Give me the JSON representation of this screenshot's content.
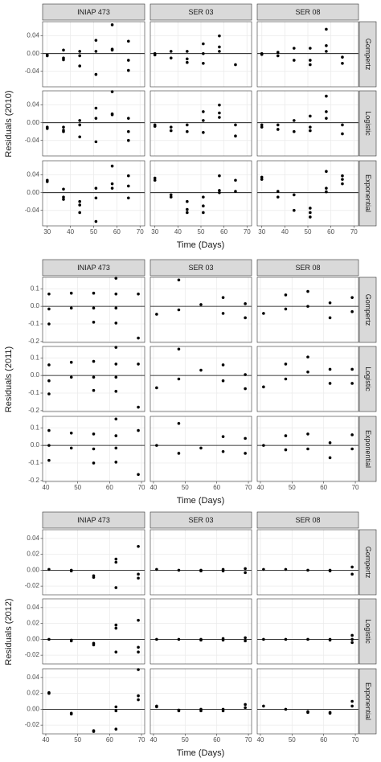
{
  "chart_data": [
    {
      "type": "scatter",
      "ylabel": "Residuals (2010)",
      "xlabel": "Time (Days)",
      "color": "#000000",
      "grid": true,
      "hline": 0,
      "xlim": [
        28,
        72
      ],
      "xticks": [
        30,
        40,
        50,
        60,
        70
      ],
      "ylim": [
        -0.075,
        0.072
      ],
      "yticks": [
        -0.04,
        {
          "value": 0,
          "label": "0.00"
        },
        0.04
      ],
      "columns": [
        "INIAP 473",
        "SER 03",
        "SER 08"
      ],
      "rows": [
        "Gompertz",
        "Logistic",
        "Exponential"
      ],
      "panels": [
        [
          {
            "x": [
              30,
              30,
              37,
              37,
              37,
              44,
              44,
              44,
              51,
              51,
              51,
              58,
              58,
              58,
              65,
              65,
              65
            ],
            "values": [
              -0.003,
              -0.005,
              0.008,
              -0.01,
              -0.014,
              0.005,
              -0.005,
              -0.028,
              0.03,
              0.005,
              -0.047,
              0.065,
              0.01,
              0.008,
              0.028,
              -0.015,
              -0.038
            ]
          },
          {
            "x": [
              30,
              30,
              37,
              37,
              44,
              44,
              44,
              51,
              51,
              51,
              58,
              58,
              58,
              65
            ],
            "values": [
              0,
              -0.003,
              0.005,
              -0.01,
              -0.012,
              -0.02,
              0.005,
              0.022,
              0,
              -0.022,
              0.04,
              0.015,
              0.005,
              -0.025
            ]
          },
          {
            "x": [
              30,
              30,
              37,
              37,
              44,
              44,
              51,
              51,
              51,
              58,
              58,
              58,
              65,
              65
            ],
            "values": [
              0,
              -0.002,
              0.003,
              -0.005,
              0.012,
              -0.015,
              0.012,
              -0.015,
              -0.025,
              0.055,
              0.018,
              0.005,
              -0.008,
              -0.022
            ]
          }
        ],
        [
          {
            "x": [
              30,
              30,
              37,
              37,
              37,
              44,
              44,
              44,
              51,
              51,
              51,
              58,
              58,
              58,
              65,
              65,
              65
            ],
            "values": [
              -0.01,
              -0.013,
              -0.01,
              -0.017,
              -0.02,
              0.005,
              -0.005,
              -0.032,
              0.033,
              0.01,
              -0.043,
              0.07,
              0.02,
              0.018,
              0.01,
              -0.02,
              -0.04
            ]
          },
          {
            "x": [
              30,
              30,
              37,
              37,
              44,
              44,
              51,
              51,
              51,
              58,
              58,
              58,
              65,
              65
            ],
            "values": [
              -0.005,
              -0.008,
              -0.01,
              -0.018,
              -0.005,
              -0.02,
              0.025,
              0.005,
              -0.022,
              0.04,
              0.022,
              0.012,
              -0.005,
              -0.03
            ]
          },
          {
            "x": [
              30,
              30,
              37,
              37,
              44,
              44,
              51,
              51,
              51,
              58,
              58,
              58,
              65,
              65
            ],
            "values": [
              -0.005,
              -0.01,
              -0.005,
              -0.015,
              0.005,
              -0.02,
              0.015,
              -0.01,
              -0.018,
              0.06,
              0.025,
              0.01,
              -0.005,
              -0.025
            ]
          }
        ],
        [
          {
            "x": [
              30,
              30,
              37,
              37,
              37,
              44,
              44,
              44,
              51,
              51,
              51,
              58,
              58,
              58,
              65,
              65,
              65
            ],
            "values": [
              0.028,
              0.025,
              0.008,
              -0.01,
              -0.015,
              -0.02,
              -0.028,
              -0.045,
              0.01,
              -0.012,
              -0.065,
              0.06,
              0.02,
              0.01,
              0.038,
              0.015,
              -0.012
            ]
          },
          {
            "x": [
              30,
              30,
              37,
              37,
              44,
              44,
              44,
              51,
              51,
              51,
              58,
              58,
              58,
              65,
              65
            ],
            "values": [
              0.033,
              0.028,
              -0.005,
              -0.01,
              -0.02,
              -0.038,
              -0.045,
              -0.01,
              -0.03,
              -0.045,
              0.038,
              0.005,
              0,
              0.028,
              0.003
            ]
          },
          {
            "x": [
              30,
              30,
              37,
              37,
              44,
              44,
              51,
              51,
              51,
              58,
              58,
              58,
              65,
              65,
              65
            ],
            "values": [
              0.035,
              0.03,
              0.003,
              -0.01,
              -0.005,
              -0.04,
              -0.035,
              -0.045,
              -0.055,
              0.048,
              0.01,
              0.002,
              0.038,
              0.03,
              0.02
            ]
          }
        ]
      ]
    },
    {
      "type": "scatter",
      "ylabel": "Residuals (2011)",
      "xlabel": "Time (Days)",
      "color": "#000000",
      "grid": true,
      "hline": 0,
      "xlim": [
        39,
        71
      ],
      "xticks": [
        40,
        50,
        60,
        70
      ],
      "ylim": [
        -0.205,
        0.165
      ],
      "yticks": [
        -0.2,
        -0.1,
        {
          "value": 0,
          "label": "0.0"
        },
        0.1
      ],
      "columns": [
        "INIAP 473",
        "SER 03",
        "SER 08"
      ],
      "rows": [
        "Gompertz",
        "Logistic",
        "Exponential"
      ],
      "panels": [
        [
          {
            "x": [
              41,
              41,
              41,
              48,
              48,
              55,
              55,
              55,
              62,
              62,
              62,
              62,
              69,
              69
            ],
            "values": [
              0.07,
              -0.015,
              -0.1,
              0.075,
              -0.01,
              0.075,
              -0.01,
              -0.09,
              0.16,
              0.07,
              -0.01,
              -0.095,
              0.07,
              -0.18
            ]
          },
          {
            "x": [
              41,
              48,
              48,
              55,
              62,
              62,
              69,
              69
            ],
            "values": [
              -0.045,
              0.15,
              -0.02,
              0.01,
              0.05,
              -0.04,
              0.015,
              -0.065
            ]
          },
          {
            "x": [
              41,
              48,
              48,
              55,
              55,
              62,
              62,
              69,
              69
            ],
            "values": [
              -0.04,
              0.065,
              -0.015,
              0.085,
              0,
              0.02,
              -0.065,
              0.05,
              -0.03
            ]
          }
        ],
        [
          {
            "x": [
              41,
              41,
              41,
              48,
              48,
              55,
              55,
              55,
              62,
              62,
              62,
              62,
              69,
              69
            ],
            "values": [
              0.06,
              -0.03,
              -0.105,
              0.075,
              -0.01,
              0.08,
              -0.01,
              -0.085,
              0.16,
              0.065,
              -0.01,
              -0.09,
              0.065,
              -0.18
            ]
          },
          {
            "x": [
              41,
              48,
              48,
              55,
              62,
              62,
              69,
              69
            ],
            "values": [
              -0.07,
              0.15,
              -0.02,
              0.03,
              0.06,
              -0.03,
              0.005,
              -0.075
            ]
          },
          {
            "x": [
              41,
              48,
              48,
              55,
              55,
              62,
              62,
              69,
              69
            ],
            "values": [
              -0.065,
              0.065,
              -0.02,
              0.105,
              0.02,
              0.035,
              -0.045,
              0.035,
              -0.045
            ]
          }
        ],
        [
          {
            "x": [
              41,
              41,
              41,
              48,
              48,
              55,
              55,
              55,
              62,
              62,
              62,
              62,
              69,
              69
            ],
            "values": [
              0.085,
              0,
              -0.085,
              0.07,
              -0.015,
              0.065,
              -0.02,
              -0.1,
              0.15,
              0.055,
              -0.015,
              -0.095,
              0.085,
              -0.165
            ]
          },
          {
            "x": [
              41,
              48,
              48,
              55,
              62,
              62,
              69,
              69
            ],
            "values": [
              0,
              0.125,
              -0.045,
              -0.015,
              0.05,
              -0.035,
              0.04,
              -0.045
            ]
          },
          {
            "x": [
              41,
              48,
              48,
              55,
              55,
              62,
              62,
              69,
              69
            ],
            "values": [
              0,
              0.055,
              -0.025,
              0.065,
              -0.02,
              0.015,
              -0.07,
              0.06,
              -0.02
            ]
          }
        ]
      ]
    },
    {
      "type": "scatter",
      "ylabel": "Residuals (2012)",
      "xlabel": "Time (Days)",
      "color": "#000000",
      "grid": true,
      "hline": 0,
      "xlim": [
        39,
        71
      ],
      "xticks": [
        40,
        50,
        60,
        70
      ],
      "ylim": [
        -0.031,
        0.051
      ],
      "yticks": [
        -0.02,
        {
          "value": 0,
          "label": "0.00"
        },
        0.02,
        0.04
      ],
      "columns": [
        "INIAP 473",
        "SER 03",
        "SER 08"
      ],
      "rows": [
        "Gompertz",
        "Logistic",
        "Exponential"
      ],
      "panels": [
        [
          {
            "x": [
              41,
              48,
              48,
              55,
              55,
              62,
              62,
              62,
              69,
              69,
              69
            ],
            "values": [
              0.001,
              0,
              -0.001,
              -0.007,
              -0.009,
              0.014,
              0.01,
              -0.022,
              0.03,
              -0.005,
              -0.01
            ]
          },
          {
            "x": [
              41,
              48,
              55,
              55,
              62,
              62,
              69,
              69
            ],
            "values": [
              0.001,
              0,
              0,
              -0.001,
              0.001,
              -0.001,
              0.002,
              -0.003
            ]
          },
          {
            "x": [
              41,
              48,
              55,
              62,
              62,
              69,
              69
            ],
            "values": [
              0.001,
              0.001,
              0,
              -0.001,
              0,
              0.004,
              -0.005
            ]
          }
        ],
        [
          {
            "x": [
              41,
              48,
              48,
              55,
              55,
              62,
              62,
              62,
              69,
              69,
              69
            ],
            "values": [
              0,
              -0.001,
              -0.002,
              -0.005,
              -0.007,
              0.018,
              0.014,
              -0.016,
              0.024,
              -0.01,
              -0.016
            ]
          },
          {
            "x": [
              41,
              48,
              55,
              55,
              62,
              62,
              69,
              69
            ],
            "values": [
              0,
              0,
              0,
              -0.001,
              0.001,
              -0.001,
              0.002,
              -0.002
            ]
          },
          {
            "x": [
              41,
              48,
              55,
              62,
              62,
              69,
              69,
              69
            ],
            "values": [
              0,
              0,
              0,
              -0.001,
              0,
              0.005,
              0,
              -0.004
            ]
          }
        ],
        [
          {
            "x": [
              41,
              41,
              48,
              48,
              55,
              55,
              62,
              62,
              62,
              69,
              69,
              69
            ],
            "values": [
              0.021,
              0.02,
              -0.005,
              -0.006,
              -0.027,
              -0.028,
              0.003,
              -0.002,
              -0.025,
              0.05,
              0.017,
              0.012
            ]
          },
          {
            "x": [
              41,
              41,
              48,
              48,
              55,
              55,
              62,
              62,
              69,
              69
            ],
            "values": [
              0.004,
              0.003,
              -0.001,
              -0.002,
              -0.002,
              0,
              0,
              -0.002,
              0.006,
              0.002
            ]
          },
          {
            "x": [
              41,
              48,
              55,
              55,
              62,
              62,
              69,
              69
            ],
            "values": [
              0.004,
              0,
              -0.004,
              -0.003,
              -0.004,
              -0.005,
              0.01,
              0.004
            ]
          }
        ]
      ]
    }
  ]
}
